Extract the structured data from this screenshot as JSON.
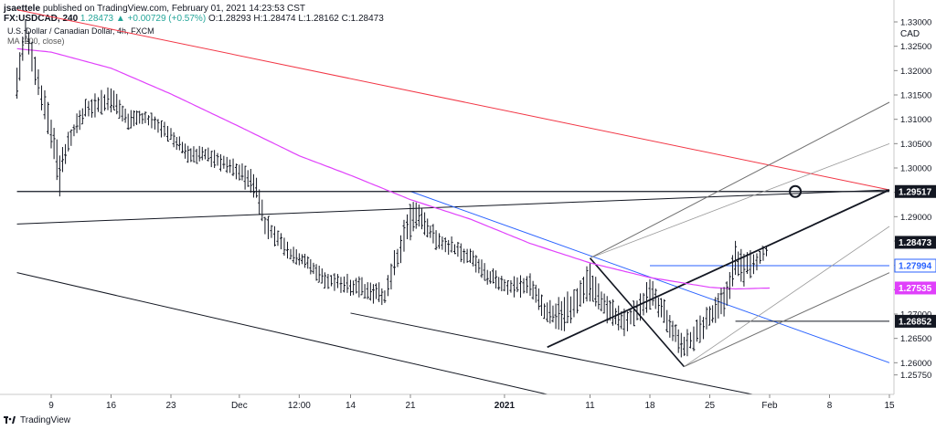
{
  "header": {
    "author": "jsaettele",
    "published": "published on TradingView.com, February 01, 2021 14:23:53 CST",
    "symbol_line": "FX:USDCAD, 240",
    "change": "1.28473 ▲ +0.00729 (+0.57%)",
    "ohlc": "O:1.28293 H:1.28474 L:1.28162 C:1.28473"
  },
  "legend": {
    "instrument": "U.S. Dollar / Canadian Dollar, 4h, FXCM",
    "ma_label": "MA (200, close)"
  },
  "footer": {
    "brand": "TradingView",
    "logo_icon": "tradingview-logo-icon"
  },
  "colors": {
    "candles": "#131722",
    "ma": "#e040fb",
    "red_line": "#f23645",
    "blue_line": "#2962ff",
    "trend": "#131722",
    "fork": "#6f6f6f"
  },
  "chart_data": {
    "type": "candlestick",
    "currency": "CAD",
    "ylim": [
      1.2535,
      1.3345
    ],
    "y_ticks": [
      "1.33000",
      "1.32500",
      "1.32000",
      "1.31500",
      "1.31000",
      "1.30500",
      "1.30000",
      "1.29500",
      "1.29000",
      "1.28500",
      "1.28000",
      "1.27500",
      "1.27000",
      "1.26500",
      "1.26000",
      "1.25750"
    ],
    "y_tick_values": [
      1.33,
      1.325,
      1.32,
      1.315,
      1.31,
      1.305,
      1.3,
      1.295,
      1.29,
      1.285,
      1.28,
      1.275,
      1.27,
      1.265,
      1.26,
      1.2575
    ],
    "x_ticks": [
      {
        "label": "9",
        "date": "2020-11-09"
      },
      {
        "label": "16",
        "date": "2020-11-16"
      },
      {
        "label": "23",
        "date": "2020-11-23"
      },
      {
        "label": "Dec",
        "date": "2020-12-01"
      },
      {
        "label": "12:00",
        "date": "2020-12-08"
      },
      {
        "label": "14",
        "date": "2020-12-14"
      },
      {
        "label": "21",
        "date": "2020-12-21"
      },
      {
        "label": "2021",
        "date": "2021-01-01"
      },
      {
        "label": "11",
        "date": "2021-01-11"
      },
      {
        "label": "18",
        "date": "2021-01-18"
      },
      {
        "label": "25",
        "date": "2021-01-25"
      },
      {
        "label": "Feb",
        "date": "2021-02-01"
      },
      {
        "label": "8",
        "date": "2021-02-08"
      },
      {
        "label": "15",
        "date": "2021-02-15"
      }
    ],
    "price_labels": [
      {
        "value": "1.29517",
        "price": 1.29517,
        "style": "black"
      },
      {
        "value": "1.28473",
        "price": 1.28473,
        "style": "black"
      },
      {
        "value": "1.27994",
        "price": 1.27994,
        "style": "blue"
      },
      {
        "value": "1.27535",
        "price": 1.27535,
        "style": "magenta"
      },
      {
        "value": "1.26852",
        "price": 1.26852,
        "style": "black"
      }
    ],
    "ohlc_anchors": [
      [
        "2020-11-05",
        1.3125,
        1.3225
      ],
      [
        "2020-11-06",
        1.3245,
        1.331
      ],
      [
        "2020-11-09",
        1.303,
        1.3125
      ],
      [
        "2020-11-10",
        1.2935,
        1.3042
      ],
      [
        "2020-11-11",
        1.3028,
        1.308
      ],
      [
        "2020-11-13",
        1.3095,
        1.315
      ],
      [
        "2020-11-16",
        1.311,
        1.3172
      ],
      [
        "2020-11-18",
        1.3075,
        1.3125
      ],
      [
        "2020-11-20",
        1.3085,
        1.3125
      ],
      [
        "2020-11-23",
        1.3045,
        1.309
      ],
      [
        "2020-11-25",
        1.3005,
        1.3048
      ],
      [
        "2020-11-27",
        1.3005,
        1.3052
      ],
      [
        "2020-12-01",
        1.2965,
        1.3022
      ],
      [
        "2020-12-03",
        1.2925,
        1.2995
      ],
      [
        "2020-12-04",
        1.2855,
        1.2912
      ],
      [
        "2020-12-07",
        1.2805,
        1.2845
      ],
      [
        "2020-12-09",
        1.2785,
        1.2825
      ],
      [
        "2020-12-11",
        1.2745,
        1.2795
      ],
      [
        "2020-12-14",
        1.2735,
        1.2785
      ],
      [
        "2020-12-16",
        1.2725,
        1.2775
      ],
      [
        "2020-12-18",
        1.2705,
        1.2765
      ],
      [
        "2020-12-21",
        1.2845,
        1.2952
      ],
      [
        "2020-12-22",
        1.2875,
        1.293
      ],
      [
        "2020-12-24",
        1.2825,
        1.2882
      ],
      [
        "2020-12-28",
        1.2795,
        1.2838
      ],
      [
        "2020-12-30",
        1.2755,
        1.2805
      ],
      [
        "2021-01-01",
        1.2735,
        1.2782
      ],
      [
        "2021-01-04",
        1.2725,
        1.279
      ],
      [
        "2021-01-06",
        1.2665,
        1.273
      ],
      [
        "2021-01-08",
        1.2655,
        1.2745
      ],
      [
        "2021-01-11",
        1.2715,
        1.2818
      ],
      [
        "2021-01-13",
        1.2675,
        1.2745
      ],
      [
        "2021-01-15",
        1.2645,
        1.2715
      ],
      [
        "2021-01-18",
        1.2705,
        1.2782
      ],
      [
        "2021-01-20",
        1.2655,
        1.2725
      ],
      [
        "2021-01-22",
        1.2595,
        1.2665
      ],
      [
        "2021-01-25",
        1.2655,
        1.2728
      ],
      [
        "2021-01-27",
        1.2695,
        1.2775
      ],
      [
        "2021-01-28",
        1.2765,
        1.2855
      ],
      [
        "2021-01-29",
        1.2752,
        1.2835
      ],
      [
        "2021-02-01",
        1.2816,
        1.2847
      ]
    ],
    "ma200": [
      [
        "2020-11-05",
        1.3245
      ],
      [
        "2020-11-09",
        1.3238
      ],
      [
        "2020-11-16",
        1.3205
      ],
      [
        "2020-11-23",
        1.3152
      ],
      [
        "2020-12-01",
        1.3085
      ],
      [
        "2020-12-08",
        1.3025
      ],
      [
        "2020-12-14",
        1.2985
      ],
      [
        "2020-12-21",
        1.2935
      ],
      [
        "2020-12-28",
        1.2895
      ],
      [
        "2021-01-04",
        1.2845
      ],
      [
        "2021-01-11",
        1.2805
      ],
      [
        "2021-01-18",
        1.2775
      ],
      [
        "2021-01-25",
        1.2755
      ],
      [
        "2021-01-28",
        1.27515
      ],
      [
        "2021-02-01",
        1.27535
      ]
    ],
    "lines": [
      {
        "kind": "red_trendline",
        "points": [
          [
            "2020-11-05",
            1.3325
          ],
          [
            "2021-02-15",
            1.2955
          ]
        ]
      },
      {
        "kind": "upper_trendline",
        "points": [
          [
            "2020-11-05",
            1.2885
          ],
          [
            "2021-02-15",
            1.2955
          ]
        ]
      },
      {
        "kind": "lower_channel",
        "points": [
          [
            "2020-11-05",
            1.2785
          ],
          [
            "2021-01-06",
            1.2535
          ]
        ]
      },
      {
        "kind": "support_line",
        "points": [
          [
            "2020-12-14",
            1.2702
          ],
          [
            "2021-01-30",
            1.2535
          ]
        ]
      },
      {
        "kind": "blue_trendline",
        "points": [
          [
            "2020-12-21",
            1.2952
          ],
          [
            "2021-02-15",
            1.26
          ]
        ]
      },
      {
        "kind": "hline_129517",
        "points": [
          [
            "2020-11-05",
            1.29517
          ],
          [
            "2021-02-15",
            1.29517
          ]
        ]
      },
      {
        "kind": "hline_127994",
        "points": [
          [
            "2021-01-18",
            1.27994
          ],
          [
            "2021-02-15",
            1.27994
          ]
        ]
      },
      {
        "kind": "hline_126852",
        "points": [
          [
            "2021-01-28",
            1.26852
          ],
          [
            "2021-02-15",
            1.26852
          ]
        ]
      },
      {
        "kind": "fork_down",
        "points": [
          [
            "2021-01-11",
            1.2815
          ],
          [
            "2021-01-22",
            1.2592
          ]
        ]
      },
      {
        "kind": "fork_median",
        "points": [
          [
            "2021-01-06",
            1.2632
          ],
          [
            "2021-02-15",
            1.2955
          ]
        ]
      },
      {
        "kind": "fork_upper",
        "points": [
          [
            "2021-01-11",
            1.2815
          ],
          [
            "2021-02-15",
            1.3135
          ]
        ]
      },
      {
        "kind": "fork_upper_mid",
        "points": [
          [
            "2021-01-11",
            1.2815
          ],
          [
            "2021-02-15",
            1.305
          ]
        ]
      },
      {
        "kind": "fork_lower_mid",
        "points": [
          [
            "2021-01-22",
            1.2592
          ],
          [
            "2021-02-15",
            1.288
          ]
        ]
      },
      {
        "kind": "fork_lower",
        "points": [
          [
            "2021-01-22",
            1.2592
          ],
          [
            "2021-02-15",
            1.2785
          ]
        ]
      }
    ],
    "marker": {
      "kind": "circle",
      "date": "2021-02-04",
      "price": 1.29517
    }
  }
}
